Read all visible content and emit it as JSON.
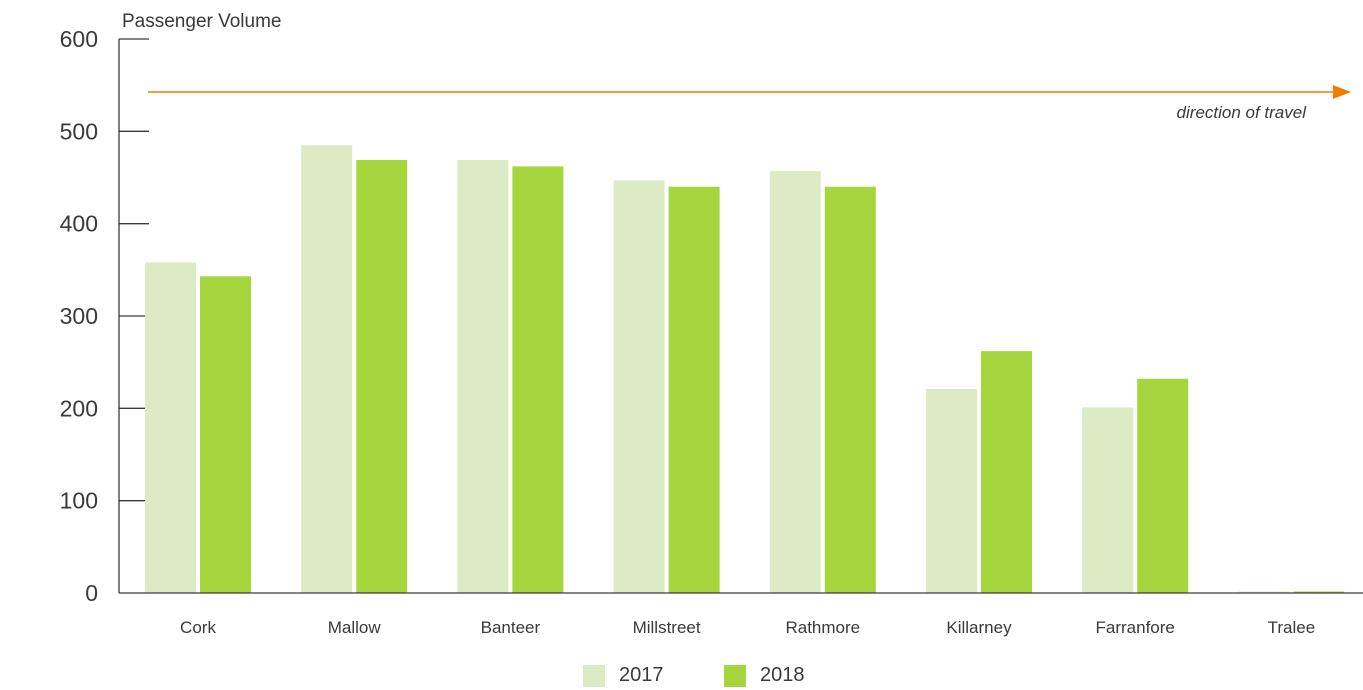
{
  "chart_data": {
    "type": "bar",
    "ylabel": "Passenger Volume",
    "xlabel": "",
    "ylim": [
      0,
      600
    ],
    "yticks": [
      "0",
      "100",
      "200",
      "300",
      "400",
      "500",
      "600"
    ],
    "categories": [
      "Cork",
      "Mallow",
      "Banteer",
      "Millstreet",
      "Rathmore",
      "Killarney",
      "Farranfore",
      "Tralee"
    ],
    "series": [
      {
        "name": "2017",
        "color": "#dcebc4",
        "values": [
          358,
          485,
          469,
          447,
          457,
          221,
          201,
          0
        ]
      },
      {
        "name": "2018",
        "color": "#a6d63d",
        "values": [
          343,
          469,
          462,
          440,
          440,
          262,
          232,
          0
        ]
      }
    ],
    "annotation": {
      "text": "direction of travel",
      "arrow_color": "#ef7d00"
    },
    "grid": false,
    "legend_position": "bottom-center"
  }
}
